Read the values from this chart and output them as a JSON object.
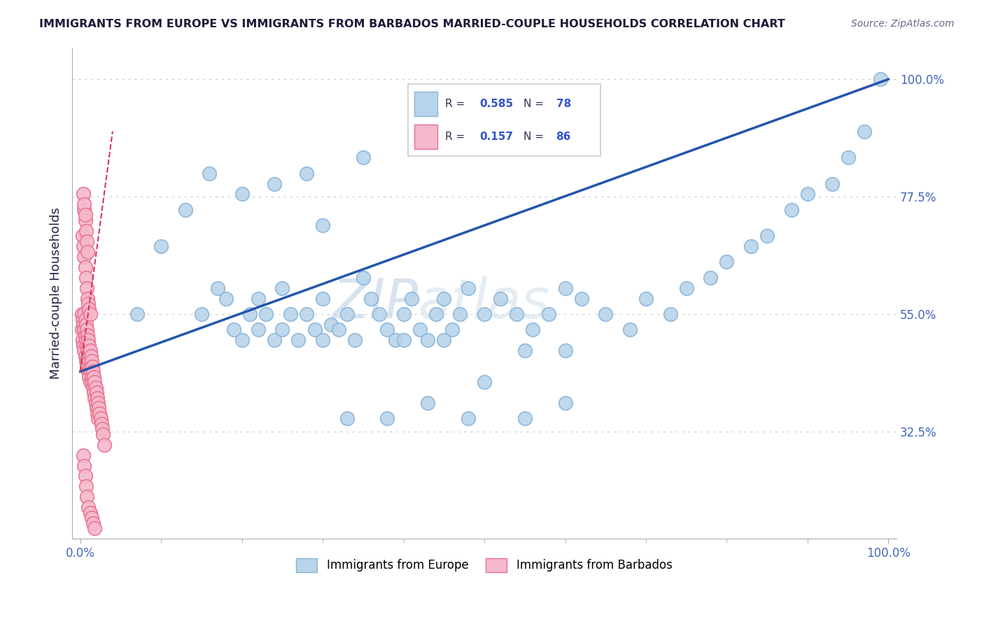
{
  "title": "IMMIGRANTS FROM EUROPE VS IMMIGRANTS FROM BARBADOS MARRIED-COUPLE HOUSEHOLDS CORRELATION CHART",
  "source": "Source: ZipAtlas.com",
  "ylabel": "Married-couple Households",
  "watermark_zip": "ZIP",
  "watermark_atlas": "atlas",
  "blue_R": 0.585,
  "blue_N": 78,
  "pink_R": 0.157,
  "pink_N": 86,
  "blue_color": "#b8d4ea",
  "blue_edge": "#8ab4d8",
  "pink_color": "#f5b8cc",
  "pink_edge": "#e8708c",
  "regression_blue_color": "#2255aa",
  "regression_pink_color": "#dd3355",
  "title_color": "#1a1a3a",
  "source_color": "#666688",
  "axis_label_color": "#222244",
  "tick_color": "#4466bb",
  "legend_R_color": "#3355cc",
  "ylim": [
    0.12,
    1.06
  ],
  "xlim": [
    -0.01,
    1.01
  ],
  "yticks": [
    0.325,
    0.55,
    0.775,
    1.0
  ],
  "ytick_labels": [
    "32.5%",
    "55.0%",
    "77.5%",
    "100.0%"
  ],
  "xtick_labels": [
    "0.0%",
    "100.0%"
  ],
  "xticks": [
    0.0,
    1.0
  ],
  "blue_x": [
    0.07,
    0.1,
    0.13,
    0.15,
    0.17,
    0.18,
    0.19,
    0.2,
    0.21,
    0.22,
    0.22,
    0.23,
    0.24,
    0.25,
    0.25,
    0.26,
    0.27,
    0.28,
    0.29,
    0.3,
    0.3,
    0.31,
    0.32,
    0.33,
    0.34,
    0.35,
    0.36,
    0.37,
    0.38,
    0.39,
    0.4,
    0.41,
    0.42,
    0.43,
    0.44,
    0.45,
    0.46,
    0.47,
    0.48,
    0.5,
    0.52,
    0.54,
    0.56,
    0.58,
    0.6,
    0.62,
    0.65,
    0.68,
    0.7,
    0.73,
    0.75,
    0.78,
    0.8,
    0.83,
    0.85,
    0.88,
    0.9,
    0.93,
    0.95,
    0.97,
    0.99,
    0.16,
    0.2,
    0.24,
    0.28,
    0.3,
    0.35,
    0.4,
    0.45,
    0.5,
    0.33,
    0.38,
    0.43,
    0.48,
    0.55,
    0.6,
    0.55,
    0.6
  ],
  "blue_y": [
    0.55,
    0.68,
    0.75,
    0.55,
    0.6,
    0.58,
    0.52,
    0.5,
    0.55,
    0.52,
    0.58,
    0.55,
    0.5,
    0.52,
    0.6,
    0.55,
    0.5,
    0.55,
    0.52,
    0.5,
    0.58,
    0.53,
    0.52,
    0.55,
    0.5,
    0.62,
    0.58,
    0.55,
    0.52,
    0.5,
    0.55,
    0.58,
    0.52,
    0.5,
    0.55,
    0.58,
    0.52,
    0.55,
    0.6,
    0.55,
    0.58,
    0.55,
    0.52,
    0.55,
    0.6,
    0.58,
    0.55,
    0.52,
    0.58,
    0.55,
    0.6,
    0.62,
    0.65,
    0.68,
    0.7,
    0.75,
    0.78,
    0.8,
    0.85,
    0.9,
    1.0,
    0.82,
    0.78,
    0.8,
    0.82,
    0.72,
    0.85,
    0.5,
    0.5,
    0.42,
    0.35,
    0.35,
    0.38,
    0.35,
    0.35,
    0.38,
    0.48,
    0.48
  ],
  "pink_x": [
    0.002,
    0.002,
    0.003,
    0.003,
    0.004,
    0.004,
    0.005,
    0.005,
    0.005,
    0.006,
    0.006,
    0.006,
    0.007,
    0.007,
    0.007,
    0.008,
    0.008,
    0.008,
    0.008,
    0.009,
    0.009,
    0.009,
    0.01,
    0.01,
    0.01,
    0.011,
    0.011,
    0.011,
    0.012,
    0.012,
    0.012,
    0.013,
    0.013,
    0.014,
    0.014,
    0.015,
    0.015,
    0.016,
    0.016,
    0.017,
    0.017,
    0.018,
    0.018,
    0.019,
    0.019,
    0.02,
    0.02,
    0.021,
    0.021,
    0.022,
    0.022,
    0.023,
    0.024,
    0.025,
    0.026,
    0.027,
    0.028,
    0.03,
    0.003,
    0.004,
    0.005,
    0.006,
    0.007,
    0.008,
    0.009,
    0.01,
    0.011,
    0.012,
    0.005,
    0.006,
    0.007,
    0.008,
    0.009,
    0.004,
    0.005,
    0.006,
    0.004,
    0.005,
    0.006,
    0.007,
    0.008,
    0.01,
    0.012,
    0.014,
    0.016,
    0.018
  ],
  "pink_y": [
    0.55,
    0.52,
    0.54,
    0.5,
    0.53,
    0.49,
    0.55,
    0.52,
    0.48,
    0.54,
    0.51,
    0.47,
    0.53,
    0.5,
    0.46,
    0.52,
    0.49,
    0.46,
    0.45,
    0.51,
    0.48,
    0.45,
    0.5,
    0.47,
    0.44,
    0.49,
    0.46,
    0.43,
    0.48,
    0.45,
    0.42,
    0.47,
    0.44,
    0.46,
    0.43,
    0.45,
    0.42,
    0.44,
    0.41,
    0.43,
    0.4,
    0.42,
    0.39,
    0.41,
    0.38,
    0.4,
    0.37,
    0.39,
    0.36,
    0.38,
    0.35,
    0.37,
    0.36,
    0.35,
    0.34,
    0.33,
    0.32,
    0.3,
    0.7,
    0.68,
    0.66,
    0.64,
    0.62,
    0.6,
    0.58,
    0.57,
    0.56,
    0.55,
    0.75,
    0.73,
    0.71,
    0.69,
    0.67,
    0.78,
    0.76,
    0.74,
    0.28,
    0.26,
    0.24,
    0.22,
    0.2,
    0.18,
    0.17,
    0.16,
    0.15,
    0.14
  ]
}
